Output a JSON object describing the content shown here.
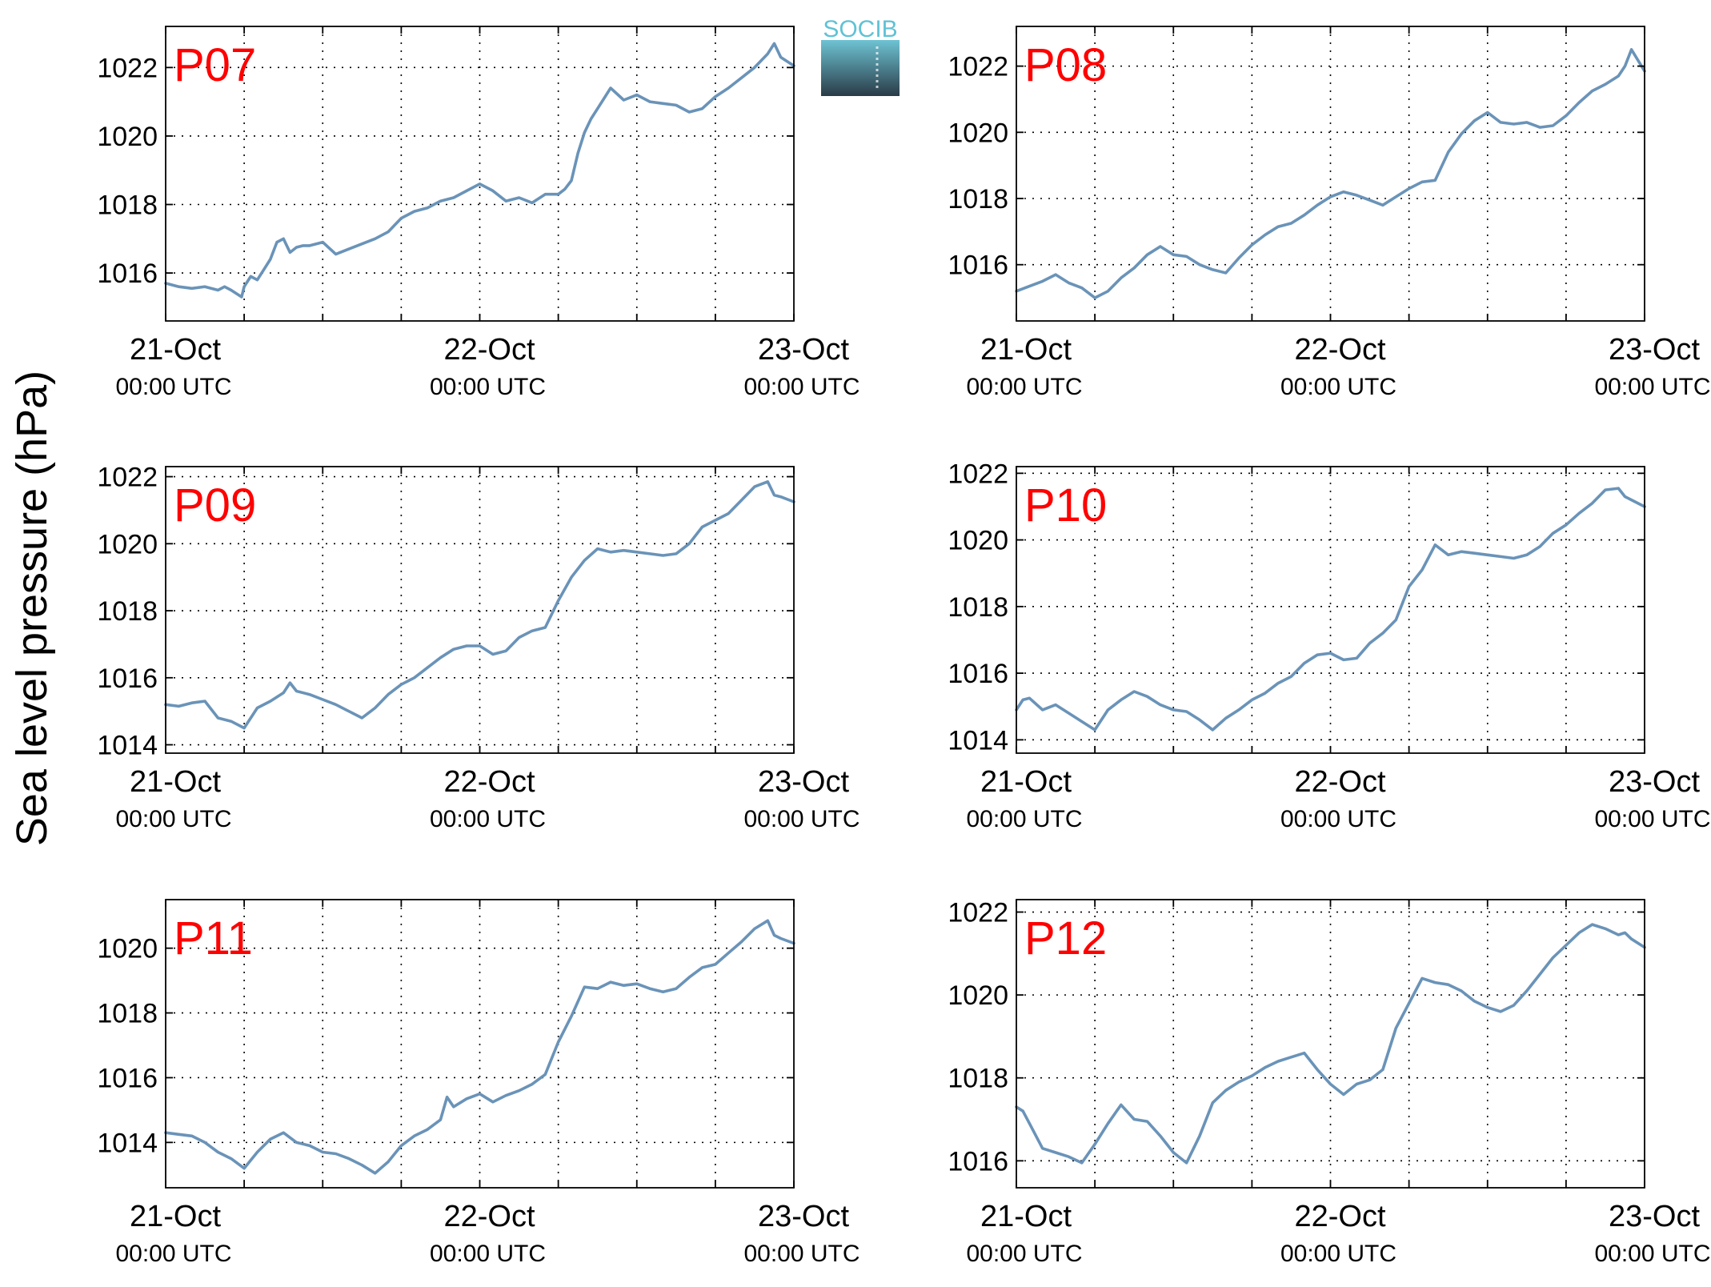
{
  "ylabel": "Sea level pressure (hPa)",
  "logo": {
    "text": "SOCIB",
    "colors": {
      "text": "#5fc2d5",
      "top": "#6ec3d3",
      "bottom": "#2a3b47"
    }
  },
  "colors": {
    "line": "#6a93b8",
    "panel_label": "#ff0000",
    "axis": "#000000",
    "grid": "#000000"
  },
  "x_tick_labels": [
    {
      "date": "21-Oct",
      "time": "00:00 UTC"
    },
    {
      "date": "22-Oct",
      "time": "00:00 UTC"
    },
    {
      "date": "23-Oct",
      "time": "00:00 UTC"
    }
  ],
  "chart_data": [
    {
      "type": "line",
      "panel": "P07",
      "xlim": [
        0,
        48
      ],
      "ylim": [
        1014.6,
        1023.2
      ],
      "yticks": [
        1016,
        1018,
        1020,
        1022
      ],
      "xticks_minor": [
        0,
        6,
        12,
        18,
        24,
        30,
        36,
        42,
        48
      ],
      "grid": true,
      "series": [
        {
          "x": [
            0,
            1,
            2,
            3,
            4,
            4.5,
            5,
            5.8,
            6,
            6.5,
            7,
            7.5,
            8,
            8.5,
            9,
            9.5,
            10,
            10.5,
            11,
            12,
            13,
            14,
            15,
            16,
            17,
            18,
            19,
            20,
            21,
            22,
            23,
            24,
            25,
            26,
            27,
            28,
            29,
            30,
            30.5,
            31,
            31.5,
            32,
            32.5,
            33,
            34,
            35,
            36,
            37,
            38,
            39,
            40,
            41,
            42,
            43,
            44,
            45,
            46,
            46.5,
            47,
            48
          ],
          "y": [
            1015.7,
            1015.6,
            1015.55,
            1015.6,
            1015.5,
            1015.6,
            1015.5,
            1015.3,
            1015.6,
            1015.9,
            1015.8,
            1016.1,
            1016.4,
            1016.9,
            1017.0,
            1016.6,
            1016.75,
            1016.8,
            1016.8,
            1016.9,
            1016.55,
            1016.7,
            1016.85,
            1017.0,
            1017.2,
            1017.6,
            1017.8,
            1017.9,
            1018.1,
            1018.2,
            1018.4,
            1018.6,
            1018.4,
            1018.1,
            1018.2,
            1018.05,
            1018.3,
            1018.3,
            1018.45,
            1018.7,
            1019.5,
            1020.1,
            1020.5,
            1020.8,
            1021.4,
            1021.05,
            1021.2,
            1021.0,
            1020.95,
            1020.9,
            1020.7,
            1020.8,
            1021.15,
            1021.4,
            1021.7,
            1022.0,
            1022.4,
            1022.7,
            1022.3,
            1022.05
          ]
        }
      ]
    },
    {
      "type": "line",
      "panel": "P08",
      "xlim": [
        0,
        48
      ],
      "ylim": [
        1014.3,
        1023.2
      ],
      "yticks": [
        1016,
        1018,
        1020,
        1022
      ],
      "xticks_minor": [
        0,
        6,
        12,
        18,
        24,
        30,
        36,
        42,
        48
      ],
      "grid": true,
      "series": [
        {
          "x": [
            0,
            1,
            2,
            3,
            4,
            5,
            6,
            7,
            8,
            9,
            10,
            11,
            12,
            13,
            14,
            15,
            16,
            17,
            18,
            19,
            20,
            21,
            22,
            23,
            24,
            25,
            26,
            27,
            28,
            29,
            30,
            31,
            32,
            33,
            34,
            35,
            36,
            37,
            38,
            39,
            40,
            41,
            42,
            43,
            44,
            45,
            46,
            46.5,
            47,
            48
          ],
          "y": [
            1015.2,
            1015.35,
            1015.5,
            1015.7,
            1015.45,
            1015.3,
            1015.0,
            1015.2,
            1015.6,
            1015.9,
            1016.3,
            1016.55,
            1016.3,
            1016.25,
            1016.0,
            1015.85,
            1015.75,
            1016.2,
            1016.6,
            1016.9,
            1017.15,
            1017.25,
            1017.5,
            1017.8,
            1018.05,
            1018.2,
            1018.1,
            1017.95,
            1017.8,
            1018.05,
            1018.3,
            1018.5,
            1018.55,
            1019.4,
            1019.95,
            1020.35,
            1020.6,
            1020.3,
            1020.25,
            1020.3,
            1020.15,
            1020.2,
            1020.5,
            1020.9,
            1021.25,
            1021.45,
            1021.7,
            1022.0,
            1022.5,
            1021.85
          ]
        }
      ]
    },
    {
      "type": "line",
      "panel": "P09",
      "xlim": [
        0,
        48
      ],
      "ylim": [
        1013.75,
        1022.3
      ],
      "yticks": [
        1014,
        1016,
        1018,
        1020,
        1022
      ],
      "xticks_minor": [
        0,
        6,
        12,
        18,
        24,
        30,
        36,
        42,
        48
      ],
      "grid": true,
      "series": [
        {
          "x": [
            0,
            1,
            2,
            3,
            4,
            5,
            6,
            7,
            8,
            9,
            9.5,
            10,
            11,
            12,
            13,
            14,
            15,
            16,
            17,
            18,
            19,
            20,
            21,
            22,
            23,
            24,
            25,
            26,
            27,
            28,
            29,
            30,
            31,
            32,
            33,
            34,
            35,
            36,
            37,
            38,
            39,
            40,
            41,
            42,
            43,
            44,
            45,
            46,
            46.5,
            47,
            48
          ],
          "y": [
            1015.2,
            1015.15,
            1015.25,
            1015.3,
            1014.8,
            1014.7,
            1014.5,
            1015.1,
            1015.3,
            1015.55,
            1015.85,
            1015.6,
            1015.5,
            1015.35,
            1015.2,
            1015.0,
            1014.8,
            1015.1,
            1015.5,
            1015.8,
            1016.0,
            1016.3,
            1016.6,
            1016.85,
            1016.95,
            1016.95,
            1016.7,
            1016.8,
            1017.2,
            1017.4,
            1017.5,
            1018.3,
            1019.0,
            1019.5,
            1019.85,
            1019.75,
            1019.8,
            1019.75,
            1019.7,
            1019.65,
            1019.7,
            1020.0,
            1020.5,
            1020.7,
            1020.9,
            1021.3,
            1021.7,
            1021.85,
            1021.45,
            1021.4,
            1021.25
          ]
        }
      ]
    },
    {
      "type": "line",
      "panel": "P10",
      "xlim": [
        0,
        48
      ],
      "ylim": [
        1013.6,
        1022.2
      ],
      "yticks": [
        1014,
        1016,
        1018,
        1020,
        1022
      ],
      "xticks_minor": [
        0,
        6,
        12,
        18,
        24,
        30,
        36,
        42,
        48
      ],
      "grid": true,
      "series": [
        {
          "x": [
            0,
            0.5,
            1,
            2,
            3,
            4,
            5,
            6,
            7,
            8,
            9,
            10,
            11,
            12,
            13,
            14,
            15,
            16,
            17,
            18,
            19,
            20,
            21,
            22,
            23,
            24,
            25,
            26,
            27,
            28,
            29,
            30,
            31,
            32,
            33,
            34,
            35,
            36,
            37,
            38,
            39,
            40,
            41,
            42,
            43,
            44,
            45,
            46,
            46.5,
            47,
            48
          ],
          "y": [
            1014.9,
            1015.2,
            1015.25,
            1014.9,
            1015.05,
            1014.8,
            1014.55,
            1014.3,
            1014.9,
            1015.2,
            1015.45,
            1015.3,
            1015.05,
            1014.9,
            1014.85,
            1014.6,
            1014.3,
            1014.65,
            1014.9,
            1015.2,
            1015.4,
            1015.7,
            1015.9,
            1016.3,
            1016.55,
            1016.6,
            1016.4,
            1016.45,
            1016.9,
            1017.2,
            1017.6,
            1018.6,
            1019.1,
            1019.85,
            1019.55,
            1019.65,
            1019.6,
            1019.55,
            1019.5,
            1019.45,
            1019.55,
            1019.8,
            1020.2,
            1020.45,
            1020.8,
            1021.1,
            1021.5,
            1021.55,
            1021.3,
            1021.2,
            1021.0
          ]
        }
      ]
    },
    {
      "type": "line",
      "panel": "P11",
      "xlim": [
        0,
        48
      ],
      "ylim": [
        1012.6,
        1021.5
      ],
      "yticks": [
        1014,
        1016,
        1018,
        1020
      ],
      "xticks_minor": [
        0,
        6,
        12,
        18,
        24,
        30,
        36,
        42,
        48
      ],
      "grid": true,
      "series": [
        {
          "x": [
            0,
            1,
            2,
            3,
            4,
            5,
            6,
            7,
            8,
            9,
            10,
            11,
            12,
            13,
            14,
            15,
            16,
            17,
            18,
            19,
            20,
            21,
            21.5,
            22,
            23,
            24,
            25,
            26,
            27,
            28,
            29,
            30,
            31,
            32,
            33,
            34,
            35,
            36,
            37,
            38,
            39,
            40,
            41,
            42,
            43,
            44,
            45,
            46,
            46.5,
            47,
            48
          ],
          "y": [
            1014.3,
            1014.25,
            1014.2,
            1014.0,
            1013.7,
            1013.5,
            1013.2,
            1013.7,
            1014.1,
            1014.3,
            1014.0,
            1013.9,
            1013.7,
            1013.65,
            1013.5,
            1013.3,
            1013.05,
            1013.4,
            1013.9,
            1014.2,
            1014.4,
            1014.7,
            1015.4,
            1015.1,
            1015.35,
            1015.5,
            1015.25,
            1015.45,
            1015.6,
            1015.8,
            1016.1,
            1017.1,
            1017.9,
            1018.8,
            1018.75,
            1018.95,
            1018.85,
            1018.9,
            1018.75,
            1018.65,
            1018.75,
            1019.1,
            1019.4,
            1019.5,
            1019.85,
            1020.2,
            1020.6,
            1020.85,
            1020.4,
            1020.3,
            1020.15
          ]
        }
      ]
    },
    {
      "type": "line",
      "panel": "P12",
      "xlim": [
        0,
        48
      ],
      "ylim": [
        1015.35,
        1022.3
      ],
      "yticks": [
        1016,
        1018,
        1020,
        1022
      ],
      "xticks_minor": [
        0,
        6,
        12,
        18,
        24,
        30,
        36,
        42,
        48
      ],
      "grid": true,
      "series": [
        {
          "x": [
            0,
            0.5,
            1,
            2,
            3,
            4,
            5,
            6,
            7,
            8,
            9,
            10,
            11,
            12,
            13,
            14,
            15,
            16,
            17,
            18,
            19,
            20,
            21,
            22,
            23,
            24,
            25,
            26,
            27,
            28,
            29,
            30,
            31,
            32,
            33,
            34,
            35,
            36,
            37,
            38,
            39,
            40,
            41,
            42,
            43,
            44,
            45,
            46,
            46.5,
            47,
            48
          ],
          "y": [
            1017.3,
            1017.2,
            1016.9,
            1016.3,
            1016.2,
            1016.1,
            1015.95,
            1016.4,
            1016.9,
            1017.35,
            1017.0,
            1016.95,
            1016.6,
            1016.2,
            1015.95,
            1016.6,
            1017.4,
            1017.7,
            1017.9,
            1018.05,
            1018.25,
            1018.4,
            1018.5,
            1018.6,
            1018.2,
            1017.85,
            1017.6,
            1017.85,
            1017.95,
            1018.2,
            1019.2,
            1019.8,
            1020.4,
            1020.3,
            1020.25,
            1020.1,
            1019.85,
            1019.7,
            1019.6,
            1019.75,
            1020.1,
            1020.5,
            1020.9,
            1021.2,
            1021.5,
            1021.7,
            1021.6,
            1021.45,
            1021.5,
            1021.35,
            1021.15
          ]
        }
      ]
    }
  ]
}
